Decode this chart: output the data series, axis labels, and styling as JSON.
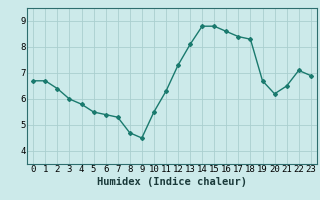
{
  "x": [
    0,
    1,
    2,
    3,
    4,
    5,
    6,
    7,
    8,
    9,
    10,
    11,
    12,
    13,
    14,
    15,
    16,
    17,
    18,
    19,
    20,
    21,
    22,
    23
  ],
  "y": [
    6.7,
    6.7,
    6.4,
    6.0,
    5.8,
    5.5,
    5.4,
    5.3,
    4.7,
    4.5,
    5.5,
    6.3,
    7.3,
    8.1,
    8.8,
    8.8,
    8.6,
    8.4,
    8.3,
    6.7,
    6.2,
    6.5,
    7.1,
    6.9
  ],
  "xlabel": "Humidex (Indice chaleur)",
  "ylim": [
    3.5,
    9.5
  ],
  "xlim": [
    -0.5,
    23.5
  ],
  "yticks": [
    4,
    5,
    6,
    7,
    8,
    9
  ],
  "xticks": [
    0,
    1,
    2,
    3,
    4,
    5,
    6,
    7,
    8,
    9,
    10,
    11,
    12,
    13,
    14,
    15,
    16,
    17,
    18,
    19,
    20,
    21,
    22,
    23
  ],
  "xtick_labels": [
    "0",
    "1",
    "2",
    "3",
    "4",
    "5",
    "6",
    "7",
    "8",
    "9",
    "10",
    "11",
    "12",
    "13",
    "14",
    "15",
    "16",
    "17",
    "18",
    "19",
    "20",
    "21",
    "22",
    "23"
  ],
  "line_color": "#1a7a6e",
  "marker": "D",
  "marker_size": 2.0,
  "bg_color": "#cceaea",
  "grid_color": "#aacfcf",
  "tick_label_fontsize": 6.5,
  "xlabel_fontsize": 7.5,
  "spine_color": "#2d6e6e"
}
